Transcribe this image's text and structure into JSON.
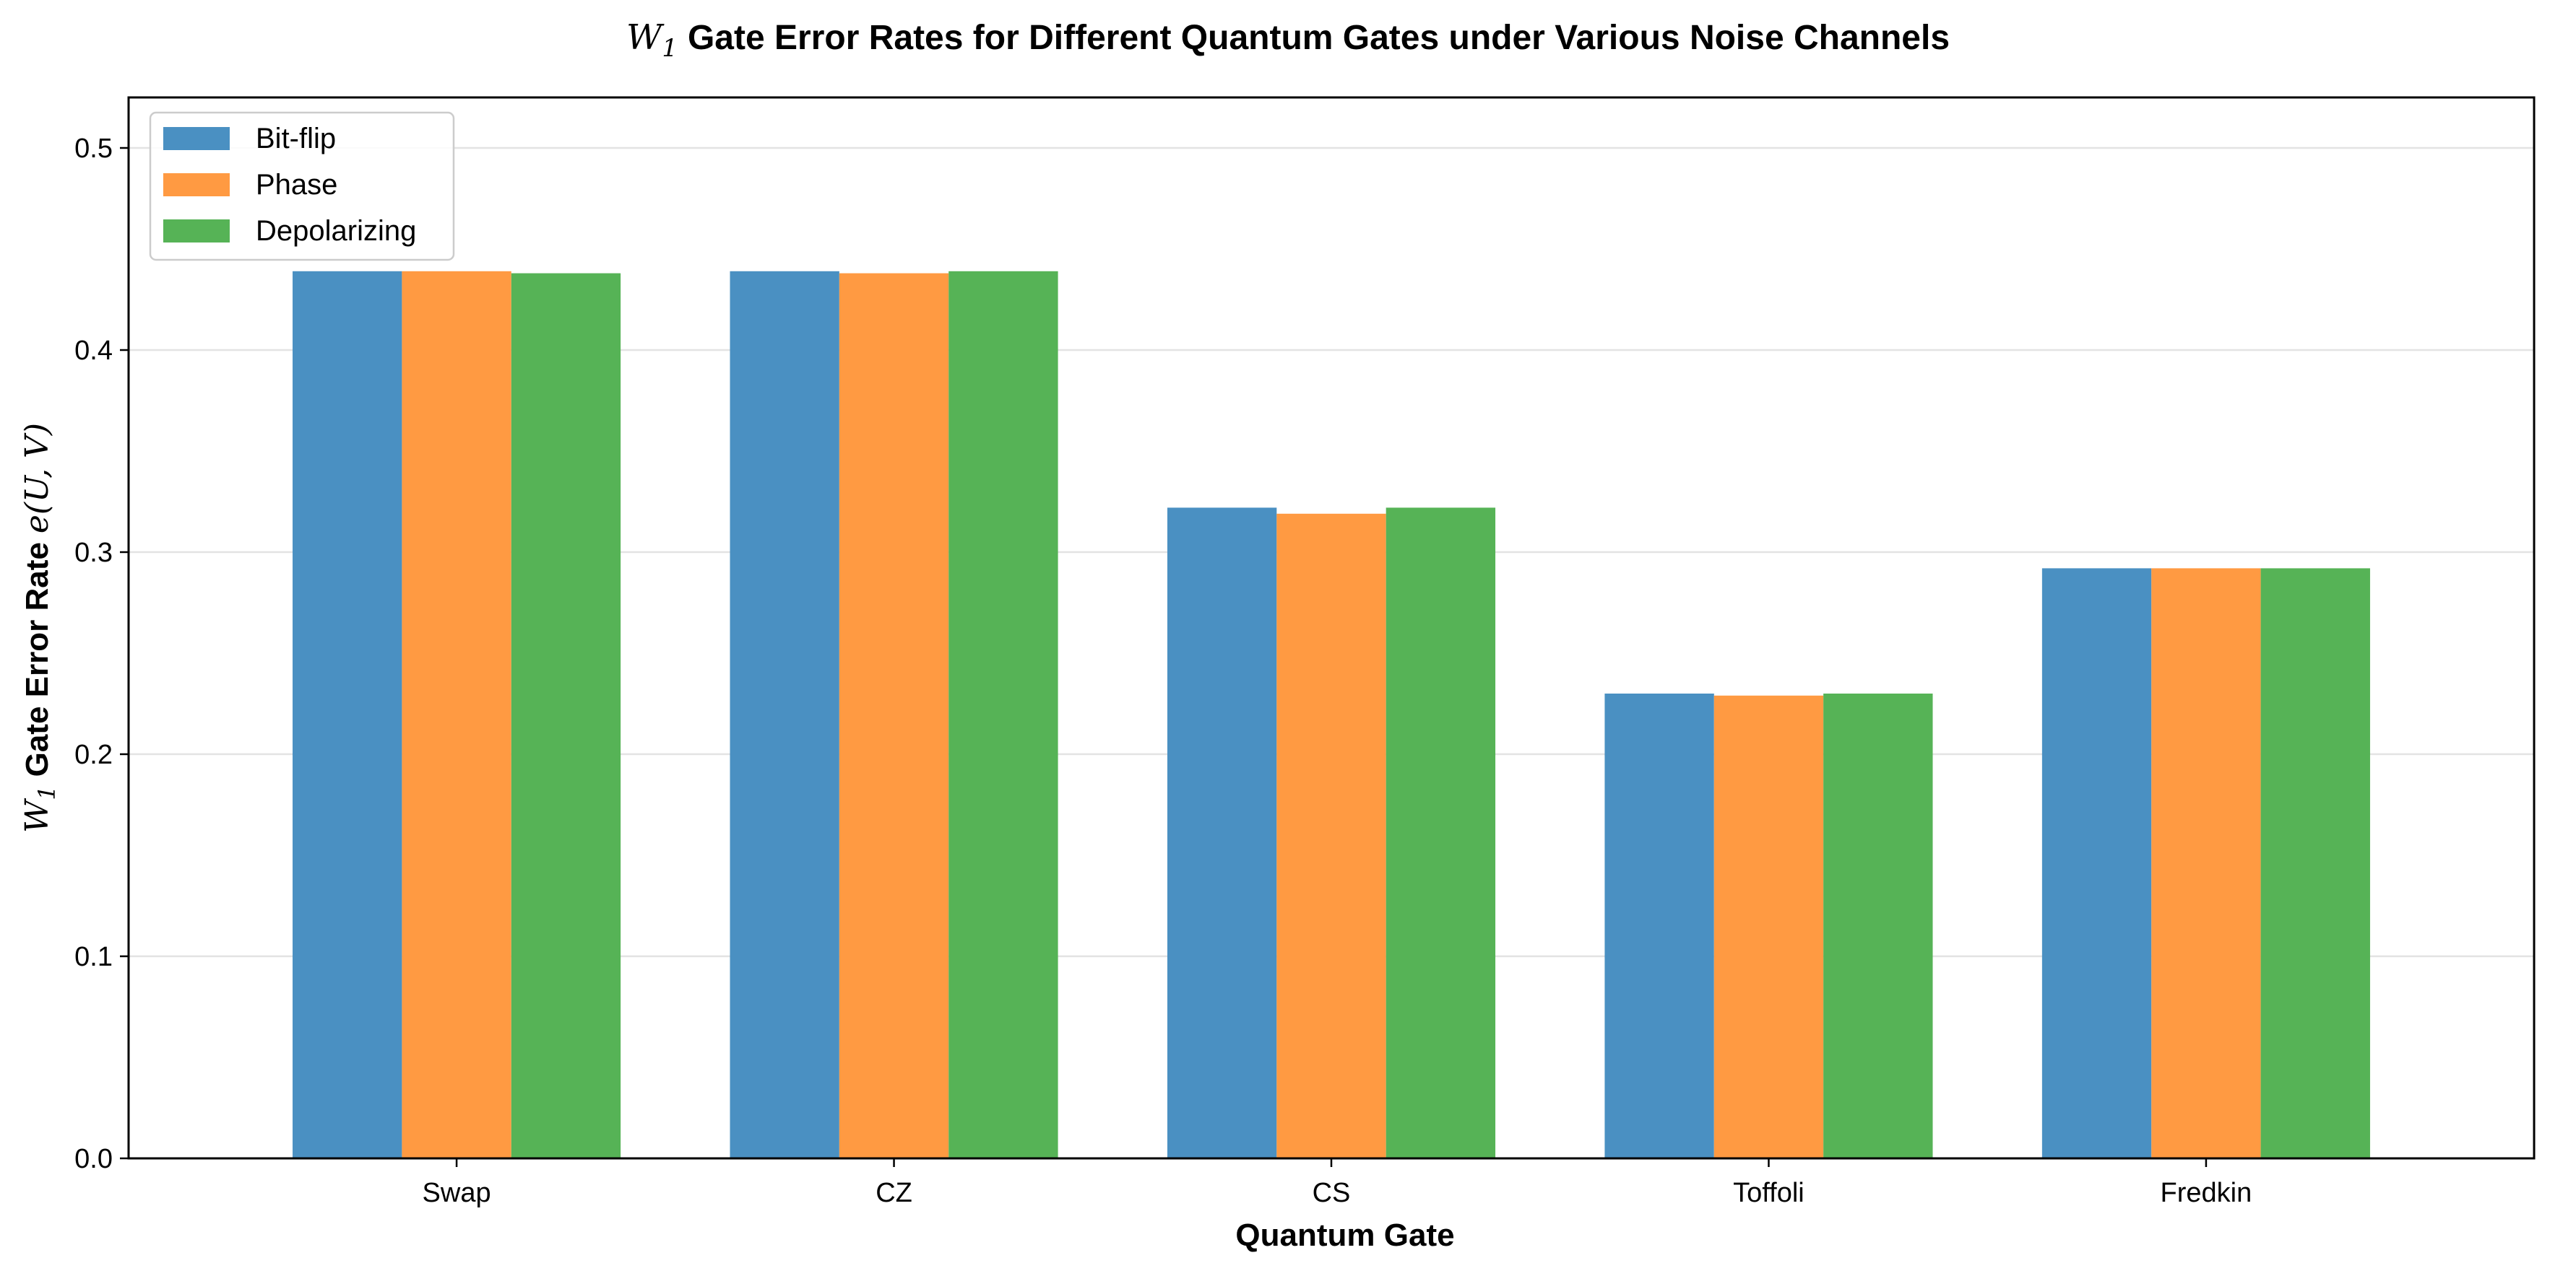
{
  "chart_data": {
    "type": "bar",
    "title_prefix": "W",
    "title_sub": "1",
    "title": "Gate Error Rates for Different Quantum Gates under Various Noise Channels",
    "xlabel": "Quantum Gate",
    "ylabel_prefix": "W",
    "ylabel_sub": "1",
    "ylabel": "Gate Error Rate",
    "ylabel_math": "e(U, V)",
    "categories": [
      "Swap",
      "CZ",
      "CS",
      "Toffoli",
      "Fredkin"
    ],
    "series": [
      {
        "name": "Bit-flip",
        "color": "#4a90c2",
        "values": [
          0.439,
          0.439,
          0.322,
          0.23,
          0.292
        ]
      },
      {
        "name": "Phase",
        "color": "#ff9a42",
        "values": [
          0.439,
          0.438,
          0.319,
          0.229,
          0.292
        ]
      },
      {
        "name": "Depolarizing",
        "color": "#56b356",
        "values": [
          0.438,
          0.439,
          0.322,
          0.23,
          0.292
        ]
      }
    ],
    "ylim": [
      0,
      0.525
    ],
    "yticks": [
      0.0,
      0.1,
      0.2,
      0.3,
      0.4,
      0.5
    ],
    "ytick_labels": [
      "0.0",
      "0.1",
      "0.2",
      "0.3",
      "0.4",
      "0.5"
    ],
    "grid": true,
    "legend_position": "top-left"
  }
}
